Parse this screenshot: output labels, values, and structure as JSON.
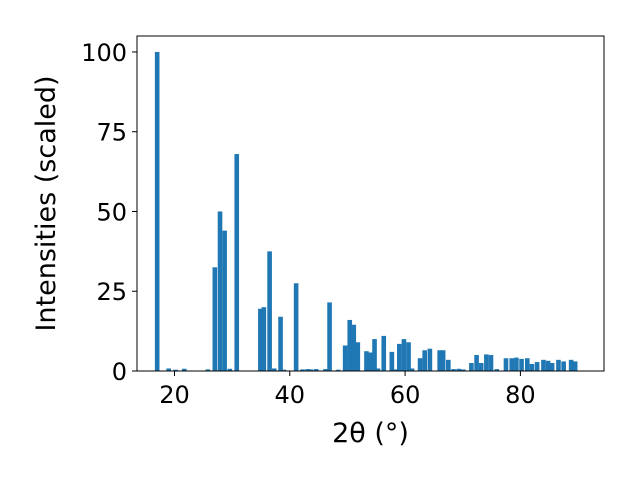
{
  "chart_data": {
    "type": "bar",
    "xlabel": "2θ (°)",
    "ylabel": "Intensities (scaled)",
    "xlim": [
      13.5,
      94.5
    ],
    "ylim": [
      0,
      105
    ],
    "xticks": [
      "20",
      "40",
      "60",
      "80"
    ],
    "yticks": [
      "0",
      "25",
      "50",
      "75",
      "100"
    ],
    "bar_color": "#1f77b4",
    "bar_width": 0.8,
    "x": [
      17.0,
      19.0,
      20.2,
      21.7,
      25.8,
      27.0,
      27.9,
      28.7,
      29.6,
      30.8,
      34.9,
      35.5,
      36.5,
      37.3,
      38.4,
      39.0,
      41.1,
      42.2,
      43.1,
      43.7,
      44.6,
      46.2,
      46.9,
      48.4,
      49.6,
      50.4,
      51.1,
      51.8,
      53.3,
      54.0,
      54.7,
      55.3,
      56.3,
      57.7,
      58.3,
      59.0,
      59.8,
      60.6,
      61.2,
      62.6,
      63.4,
      64.3,
      66.0,
      66.6,
      67.5,
      68.4,
      69.3,
      70.1,
      71.5,
      72.4,
      73.2,
      74.1,
      74.9,
      75.9,
      77.5,
      78.5,
      79.3,
      80.2,
      81.2,
      82.0,
      82.9,
      84.0,
      84.8,
      85.5,
      86.6,
      87.5,
      88.8,
      89.5
    ],
    "values": [
      100,
      0.8,
      0.4,
      0.7,
      0.5,
      32.5,
      50,
      44,
      0.7,
      68,
      19.5,
      20,
      37.5,
      0.8,
      17,
      0.4,
      27.5,
      0.5,
      0.6,
      0.5,
      0.6,
      0.6,
      21.5,
      0.4,
      8,
      16,
      14.5,
      9,
      6.2,
      5.8,
      10,
      0.8,
      11,
      6,
      0.5,
      8.5,
      10,
      9,
      0.8,
      4,
      6.5,
      7,
      6.5,
      6.5,
      3.5,
      0.6,
      0.7,
      0.5,
      2.5,
      5,
      2.5,
      5.2,
      5,
      0.6,
      4,
      4,
      4.2,
      3.8,
      4,
      2.2,
      2.8,
      3.5,
      3.2,
      2.5,
      3.5,
      3,
      3.5,
      3
    ]
  }
}
